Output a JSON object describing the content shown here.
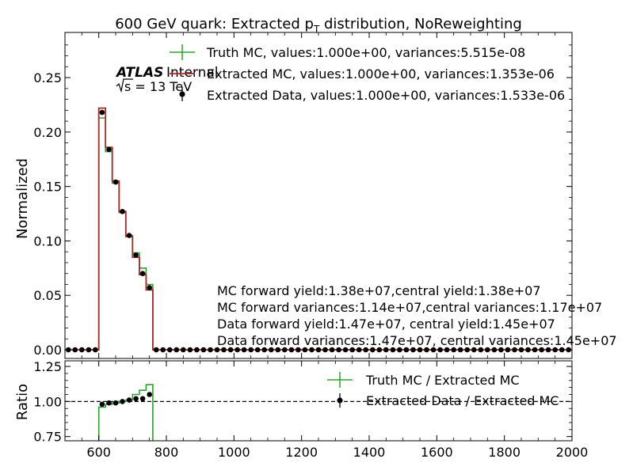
{
  "chart_data": {
    "type": "line",
    "title_parts": {
      "pre": "600 GeV quark: Extracted p",
      "sub": "T",
      "post": " distribution, NoReweighting"
    },
    "atlas_label": "ATLAS",
    "internal_label": "Internal",
    "energy_label": "s = 13 TeV",
    "bin_edges": [
      500,
      520,
      540,
      560,
      580,
      600,
      620,
      640,
      660,
      680,
      700,
      720,
      740,
      760,
      780,
      800,
      820,
      840,
      860,
      880,
      900,
      920,
      940,
      960,
      980,
      1000,
      1020,
      1040,
      1060,
      1080,
      1100,
      1120,
      1140,
      1160,
      1180,
      1200,
      1220,
      1240,
      1260,
      1280,
      1300,
      1320,
      1340,
      1360,
      1380,
      1400,
      1420,
      1440,
      1460,
      1480,
      1500,
      1520,
      1540,
      1560,
      1580,
      1600,
      1620,
      1640,
      1660,
      1680,
      1700,
      1720,
      1740,
      1760,
      1780,
      1800,
      1820,
      1840,
      1860,
      1880,
      1900,
      1920,
      1940,
      1960,
      1980,
      2000
    ],
    "active_bins": [
      {
        "lo": 600,
        "hi": 620,
        "truth": 0.213,
        "extracted": 0.222,
        "data": 0.218
      },
      {
        "lo": 620,
        "hi": 640,
        "truth": 0.182,
        "extracted": 0.186,
        "data": 0.184
      },
      {
        "lo": 640,
        "hi": 660,
        "truth": 0.153,
        "extracted": 0.155,
        "data": 0.154
      },
      {
        "lo": 660,
        "hi": 680,
        "truth": 0.126,
        "extracted": 0.127,
        "data": 0.127
      },
      {
        "lo": 680,
        "hi": 700,
        "truth": 0.105,
        "extracted": 0.104,
        "data": 0.105
      },
      {
        "lo": 700,
        "hi": 720,
        "truth": 0.089,
        "extracted": 0.085,
        "data": 0.087
      },
      {
        "lo": 720,
        "hi": 740,
        "truth": 0.075,
        "extracted": 0.069,
        "data": 0.07
      },
      {
        "lo": 740,
        "hi": 760,
        "truth": 0.06,
        "extracted": 0.055,
        "data": 0.057
      }
    ],
    "ratio_bins": [
      {
        "lo": 600,
        "hi": 620,
        "truth": 0.96,
        "data": 0.98
      },
      {
        "lo": 620,
        "hi": 640,
        "truth": 0.98,
        "data": 0.99
      },
      {
        "lo": 640,
        "hi": 660,
        "truth": 0.99,
        "data": 0.99
      },
      {
        "lo": 660,
        "hi": 680,
        "truth": 1.0,
        "data": 1.0
      },
      {
        "lo": 680,
        "hi": 700,
        "truth": 1.01,
        "data": 1.01
      },
      {
        "lo": 700,
        "hi": 720,
        "truth": 1.05,
        "data": 1.02
      },
      {
        "lo": 720,
        "hi": 740,
        "truth": 1.08,
        "data": 1.02
      },
      {
        "lo": 740,
        "hi": 760,
        "truth": 1.12,
        "data": 1.05
      }
    ],
    "xlim": [
      500,
      2000
    ],
    "ylim_main": [
      -0.008,
      0.2915
    ],
    "ylim_ratio": [
      0.72,
      1.29
    ],
    "xticks": [
      600,
      800,
      1000,
      1200,
      1400,
      1600,
      1800,
      2000
    ],
    "yticks_main": [
      0.0,
      0.05,
      0.1,
      0.15,
      0.2,
      0.25
    ],
    "yticks_ratio": [
      0.75,
      1.0,
      1.25
    ],
    "ylabel_main": "Normalized",
    "ylabel_ratio": "Ratio",
    "legend_main": [
      {
        "label": "Truth MC, values:1.000e+00, variances:5.515e-08",
        "color": "#2ca02c",
        "kind": "cross"
      },
      {
        "label": "Extracted MC, values:1.000e+00, variances:1.353e-06",
        "color": "#a52a2a",
        "kind": "line"
      },
      {
        "label": "Extracted Data, values:1.000e+00, variances:1.533e-06",
        "color": "#000000",
        "kind": "point"
      }
    ],
    "legend_ratio": [
      {
        "label": "Truth MC / Extracted MC",
        "color": "#2ca02c",
        "kind": "cross"
      },
      {
        "label": "Extracted Data / Extracted MC",
        "color": "#000000",
        "kind": "point"
      }
    ],
    "annotations": [
      "MC forward yield:1.38e+07,central yield:1.38e+07",
      "MC forward variances:1.14e+07,central variances:1.17e+07",
      "Data forward yield:1.47e+07, central yield:1.45e+07",
      "Data forward variances:1.47e+07, central variances:1.45e+07"
    ],
    "colors": {
      "truth": "#2ca02c",
      "extracted": "#a52a2a",
      "data": "#000000"
    }
  }
}
